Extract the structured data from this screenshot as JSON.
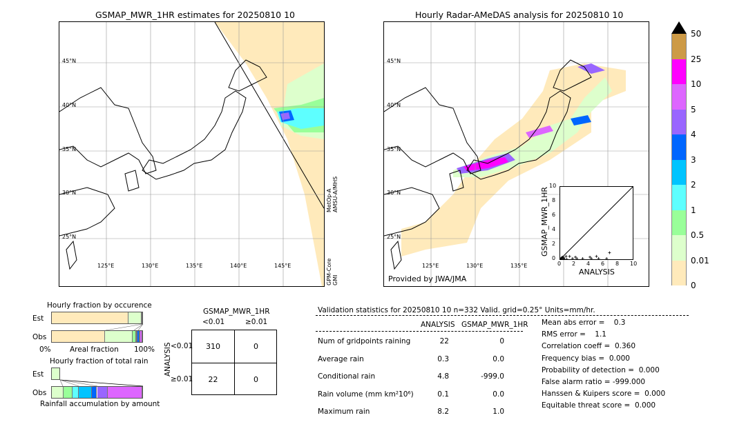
{
  "left_map": {
    "title": "GSMAP_MWR_1HR estimates for 20250810 10",
    "lat_labels": [
      "45°N",
      "40°N",
      "35°N",
      "30°N",
      "25°N"
    ],
    "lon_labels": [
      "125°E",
      "130°E",
      "135°E",
      "140°E",
      "145°E"
    ],
    "sensor1": "MetOp-A\nAMSU-A/MHS",
    "sensor1_a": "MetOp-A",
    "sensor1_b": "AMSU-A/MHS",
    "sensor2_a": "GPM-Core",
    "sensor2_b": "GMI"
  },
  "right_map": {
    "title": "Hourly Radar-AMeDAS analysis for 20250810 10",
    "lat_labels": [
      "45°N",
      "40°N",
      "35°N",
      "30°N",
      "25°N"
    ],
    "lon_labels": [
      "125°E",
      "130°E",
      "135°E"
    ],
    "credit": "Provided by JWA/JMA"
  },
  "colorbar": {
    "labels": [
      "50",
      "25",
      "10",
      "5",
      "4",
      "3",
      "2",
      "1",
      "0.5",
      "0.01",
      "0"
    ],
    "colors": [
      "#cd9a46",
      "#ff00ff",
      "#dd66ff",
      "#9966ff",
      "#0066ff",
      "#00c4ff",
      "#5effff",
      "#99ff99",
      "#ddffcc",
      "#ffeabb"
    ],
    "extend_color": "#000000"
  },
  "chart_data": [
    {
      "type": "scatter",
      "xlabel": "ANALYSIS",
      "ylabel": "GSMAP_MWR_1HR",
      "xlim": [
        0,
        10
      ],
      "ylim": [
        0,
        10
      ],
      "xticks": [
        "0",
        "2",
        "4",
        "6",
        "8",
        "10"
      ],
      "yticks": [
        "0",
        "2",
        "4",
        "6",
        "8",
        "10"
      ],
      "points": [
        [
          0.1,
          0.1
        ],
        [
          0.2,
          0.2
        ],
        [
          0.3,
          0.3
        ],
        [
          0.4,
          0.1
        ],
        [
          0.5,
          0.2
        ],
        [
          0.8,
          0.4
        ],
        [
          1.3,
          0.4
        ],
        [
          1.7,
          0.1
        ],
        [
          2.1,
          0.3
        ],
        [
          2.3,
          0.1
        ],
        [
          3.1,
          0.1
        ],
        [
          4.1,
          0.3
        ],
        [
          4.3,
          0.1
        ],
        [
          5.0,
          0.4
        ],
        [
          5.3,
          0.1
        ],
        [
          6.4,
          0.1
        ],
        [
          6.8,
          0.9
        ],
        [
          0.6,
          0.0
        ],
        [
          0.9,
          0.0
        ],
        [
          0.2,
          0.0
        ]
      ]
    },
    {
      "type": "bar",
      "title": "Hourly fraction by occurence",
      "xlabel": "Areal fraction",
      "x_min_label": "0%",
      "x_max_label": "100%",
      "categories": [
        "Est",
        "Obs"
      ],
      "est_fractions": [
        0.85,
        0.14,
        0.01
      ],
      "obs_fractions": [
        0.59,
        0.3,
        0.04,
        0.01,
        0.01,
        0.02,
        0.01,
        0.02
      ]
    },
    {
      "type": "bar",
      "title": "Hourly fraction of total rain",
      "xlabel": "Rainfall accumulation by amount",
      "categories": [
        "Est",
        "Obs"
      ],
      "obs_fractions": [
        0.13,
        0.1,
        0.07,
        0.14,
        0.06,
        0.12,
        0.38
      ]
    }
  ],
  "contingency": {
    "title": "GSMAP_MWR_1HR",
    "col_labels": [
      "<0.01",
      "≥0.01"
    ],
    "row_title": "ANALYSIS",
    "row_labels": [
      "<0.01",
      "≥0.01"
    ],
    "cells": [
      [
        "310",
        "0"
      ],
      [
        "22",
        "0"
      ]
    ]
  },
  "stats": {
    "header": "Validation statistics for 20250810 10  n=332 Valid. grid=0.25° Units=mm/hr.",
    "col1": "ANALYSIS",
    "col2": "GSMAP_MWR_1HR",
    "rows": [
      {
        "label": "Num of gridpoints raining",
        "a": "22",
        "b": "0"
      },
      {
        "label": "Average rain",
        "a": "0.3",
        "b": "0.0"
      },
      {
        "label": "Conditional rain",
        "a": "4.8",
        "b": "-999.0"
      },
      {
        "label": "Rain volume (mm km²10⁶)",
        "a": "0.1",
        "b": "0.0"
      },
      {
        "label": "Maximum rain",
        "a": "8.2",
        "b": "1.0"
      }
    ],
    "scores": [
      "Mean abs error =    0.3",
      "RMS error =    1.1",
      "Correlation coeff =  0.360",
      "Frequency bias =  0.000",
      "Probability of detection =  0.000",
      "False alarm ratio = -999.000",
      "Hanssen & Kuipers score =  0.000",
      "Equitable threat score =  0.000"
    ]
  }
}
